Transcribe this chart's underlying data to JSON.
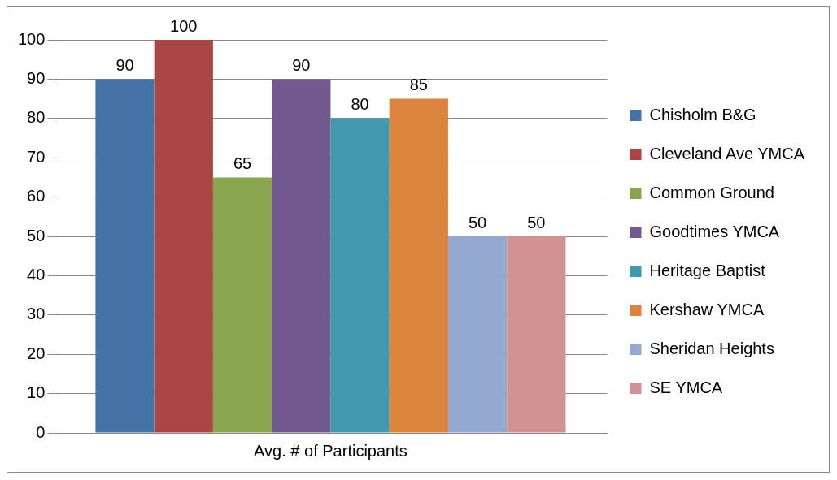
{
  "chart_data": {
    "type": "bar",
    "categories": [
      "Avg. # of Participants"
    ],
    "series": [
      {
        "name": "Chisholm B&G",
        "color": "#4572a7",
        "values": [
          90
        ]
      },
      {
        "name": "Cleveland Ave YMCA",
        "color": "#aa4643",
        "values": [
          100
        ]
      },
      {
        "name": "Common Ground",
        "color": "#89a54e",
        "values": [
          65
        ]
      },
      {
        "name": "Goodtimes YMCA",
        "color": "#71588f",
        "values": [
          90
        ]
      },
      {
        "name": "Heritage Baptist",
        "color": "#4198af",
        "values": [
          80
        ]
      },
      {
        "name": "Kershaw YMCA",
        "color": "#db843d",
        "values": [
          85
        ]
      },
      {
        "name": "Sheridan Heights",
        "color": "#93a9cf",
        "values": [
          50
        ]
      },
      {
        "name": "SE YMCA",
        "color": "#d19392",
        "values": [
          50
        ]
      }
    ],
    "ylim": [
      0,
      100
    ],
    "yticks": [
      0,
      10,
      20,
      30,
      40,
      50,
      60,
      70,
      80,
      90,
      100
    ],
    "grid": "y",
    "legend": "right",
    "data_labels": true
  }
}
